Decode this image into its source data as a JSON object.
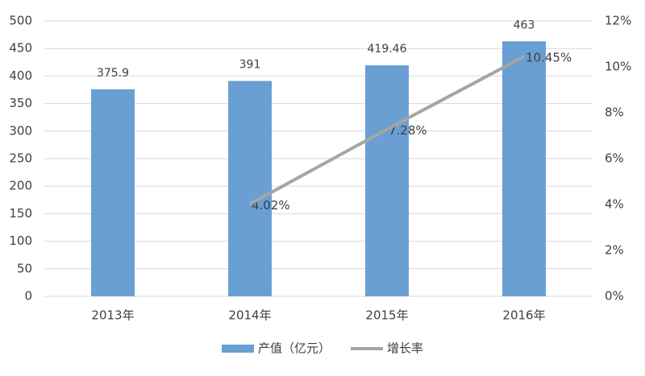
{
  "chart_data": {
    "type": "bar",
    "categories": [
      "2013年",
      "2014年",
      "2015年",
      "2016年"
    ],
    "series": [
      {
        "name": "产值（亿元）",
        "type": "bar",
        "color": "#6a9fd4",
        "values": [
          375.9,
          391,
          419.46,
          463
        ]
      },
      {
        "name": "增长率",
        "type": "line",
        "color": "#a5a5a5",
        "axis": "y2",
        "values": [
          null,
          4.02,
          7.28,
          10.45
        ],
        "value_labels": [
          null,
          "4.02%",
          "7.28%",
          "10.45%"
        ]
      }
    ],
    "ylim": [
      0,
      500
    ],
    "yticks": [
      0,
      50,
      100,
      150,
      200,
      250,
      300,
      350,
      400,
      450,
      500
    ],
    "y2lim": [
      0,
      12
    ],
    "y2ticks": [
      {
        "value": 0,
        "label": "0%"
      },
      {
        "value": 2,
        "label": "2%"
      },
      {
        "value": 4,
        "label": "4%"
      },
      {
        "value": 6,
        "label": "6%"
      },
      {
        "value": 8,
        "label": "8%"
      },
      {
        "value": 10,
        "label": "10%"
      },
      {
        "value": 12,
        "label": "12%"
      }
    ],
    "grid": true,
    "legend": "bottom"
  }
}
